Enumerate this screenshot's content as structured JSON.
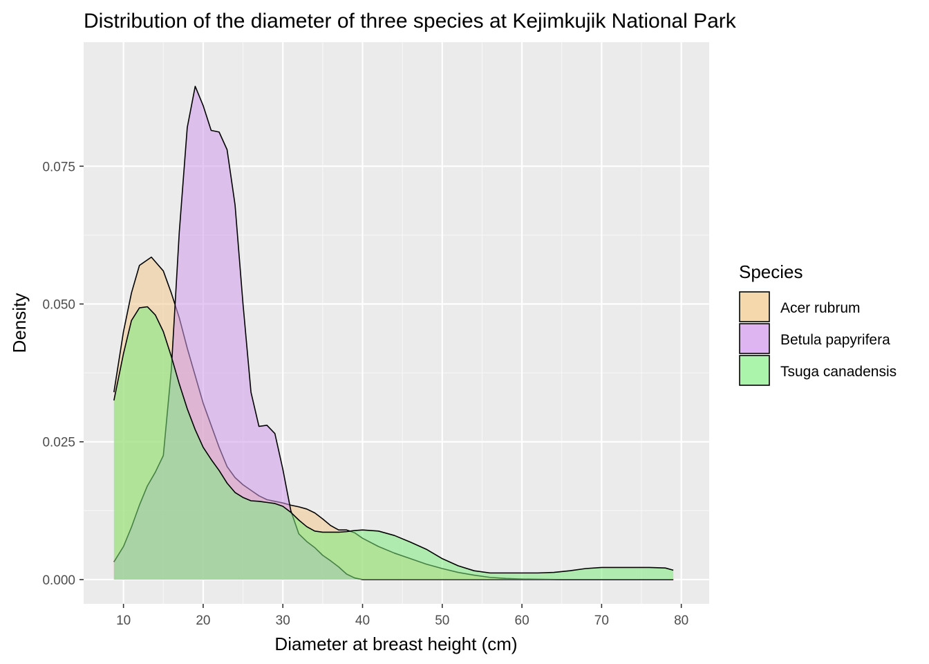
{
  "chart_data": {
    "type": "area",
    "title": "Distribution of the diameter of three species at Kejimkujik National Park",
    "xlabel": "Diameter at breast height (cm)",
    "ylabel": "Density",
    "xlim": [
      5,
      83.5
    ],
    "ylim": [
      -0.0044,
      0.0975
    ],
    "x_ticks": [
      10,
      20,
      30,
      40,
      50,
      60,
      70,
      80
    ],
    "y_ticks": [
      0.0,
      0.025,
      0.05,
      0.075
    ],
    "x_tick_labels": [
      "10",
      "20",
      "30",
      "40",
      "50",
      "60",
      "70",
      "80"
    ],
    "y_tick_labels": [
      "0.000",
      "0.025",
      "0.050",
      "0.075"
    ],
    "grid": true,
    "legend": {
      "title": "Species",
      "position": "right"
    },
    "series": [
      {
        "name": "Acer rubrum",
        "color": "#F0C98E",
        "points": [
          [
            8.8,
            0.034
          ],
          [
            10,
            0.045
          ],
          [
            11,
            0.052
          ],
          [
            12,
            0.057
          ],
          [
            13.5,
            0.0585
          ],
          [
            15,
            0.056
          ],
          [
            16,
            0.052
          ],
          [
            17,
            0.0475
          ],
          [
            18,
            0.042
          ],
          [
            19,
            0.037
          ],
          [
            20,
            0.032
          ],
          [
            21,
            0.028
          ],
          [
            22,
            0.024
          ],
          [
            23,
            0.0205
          ],
          [
            24,
            0.0185
          ],
          [
            25,
            0.0172
          ],
          [
            26,
            0.0162
          ],
          [
            27,
            0.0152
          ],
          [
            28,
            0.0145
          ],
          [
            29,
            0.0142
          ],
          [
            30,
            0.0139
          ],
          [
            31,
            0.0135
          ],
          [
            32,
            0.0132
          ],
          [
            33,
            0.0128
          ],
          [
            34,
            0.0121
          ],
          [
            35,
            0.011
          ],
          [
            36,
            0.0098
          ],
          [
            37,
            0.009
          ],
          [
            38,
            0.009
          ],
          [
            39,
            0.0085
          ],
          [
            40,
            0.0075
          ],
          [
            42,
            0.006
          ],
          [
            44,
            0.0048
          ],
          [
            46,
            0.0038
          ],
          [
            48,
            0.0028
          ],
          [
            50,
            0.002
          ],
          [
            52,
            0.0013
          ],
          [
            54,
            0.0008
          ],
          [
            56,
            0.0004
          ],
          [
            58,
            0.0002
          ],
          [
            60,
            0.0001
          ],
          [
            65,
            0.0
          ],
          [
            79,
            0.0
          ]
        ]
      },
      {
        "name": "Betula papyrifera",
        "color": "#D29AEB",
        "points": [
          [
            8.8,
            0.0032
          ],
          [
            10,
            0.006
          ],
          [
            11,
            0.0095
          ],
          [
            12,
            0.0135
          ],
          [
            13,
            0.017
          ],
          [
            14,
            0.0195
          ],
          [
            15,
            0.0225
          ],
          [
            16,
            0.038
          ],
          [
            17,
            0.063
          ],
          [
            18,
            0.082
          ],
          [
            19,
            0.0895
          ],
          [
            20,
            0.086
          ],
          [
            21,
            0.0815
          ],
          [
            22,
            0.0812
          ],
          [
            23,
            0.078
          ],
          [
            24,
            0.068
          ],
          [
            25,
            0.05
          ],
          [
            26,
            0.034
          ],
          [
            27,
            0.0278
          ],
          [
            28,
            0.028
          ],
          [
            29,
            0.0265
          ],
          [
            30,
            0.02
          ],
          [
            31,
            0.0125
          ],
          [
            32,
            0.0083
          ],
          [
            33,
            0.0069
          ],
          [
            34,
            0.0058
          ],
          [
            35,
            0.0044
          ],
          [
            36,
            0.0034
          ],
          [
            37,
            0.0023
          ],
          [
            38,
            0.001
          ],
          [
            39,
            0.0003
          ],
          [
            40,
            0.0
          ],
          [
            45,
            0.0
          ],
          [
            79,
            0.0
          ]
        ]
      },
      {
        "name": "Tsuga canadensis",
        "color": "#7EEB7E",
        "points": [
          [
            8.8,
            0.0325
          ],
          [
            10,
            0.041
          ],
          [
            11,
            0.047
          ],
          [
            12,
            0.0493
          ],
          [
            13,
            0.0495
          ],
          [
            14,
            0.048
          ],
          [
            15,
            0.045
          ],
          [
            16,
            0.0405
          ],
          [
            17,
            0.0355
          ],
          [
            18,
            0.031
          ],
          [
            19,
            0.0272
          ],
          [
            20,
            0.024
          ],
          [
            21,
            0.0218
          ],
          [
            22,
            0.0198
          ],
          [
            23,
            0.0175
          ],
          [
            24,
            0.0158
          ],
          [
            25,
            0.0149
          ],
          [
            26,
            0.0143
          ],
          [
            27,
            0.0142
          ],
          [
            28,
            0.014
          ],
          [
            29,
            0.0138
          ],
          [
            30,
            0.0133
          ],
          [
            31,
            0.0122
          ],
          [
            32,
            0.0108
          ],
          [
            33,
            0.0096
          ],
          [
            34,
            0.0088
          ],
          [
            35,
            0.0086
          ],
          [
            36,
            0.0086
          ],
          [
            37,
            0.0086
          ],
          [
            38,
            0.0087
          ],
          [
            39,
            0.0089
          ],
          [
            40,
            0.009
          ],
          [
            42,
            0.0088
          ],
          [
            44,
            0.008
          ],
          [
            46,
            0.0068
          ],
          [
            48,
            0.0055
          ],
          [
            50,
            0.0038
          ],
          [
            52,
            0.0025
          ],
          [
            54,
            0.0016
          ],
          [
            56,
            0.0012
          ],
          [
            58,
            0.0012
          ],
          [
            60,
            0.0012
          ],
          [
            62,
            0.0012
          ],
          [
            64,
            0.0013
          ],
          [
            66,
            0.0016
          ],
          [
            68,
            0.002
          ],
          [
            70,
            0.0022
          ],
          [
            72,
            0.0022
          ],
          [
            74,
            0.0022
          ],
          [
            76,
            0.0022
          ],
          [
            78,
            0.0021
          ],
          [
            79,
            0.0017
          ]
        ]
      }
    ]
  }
}
